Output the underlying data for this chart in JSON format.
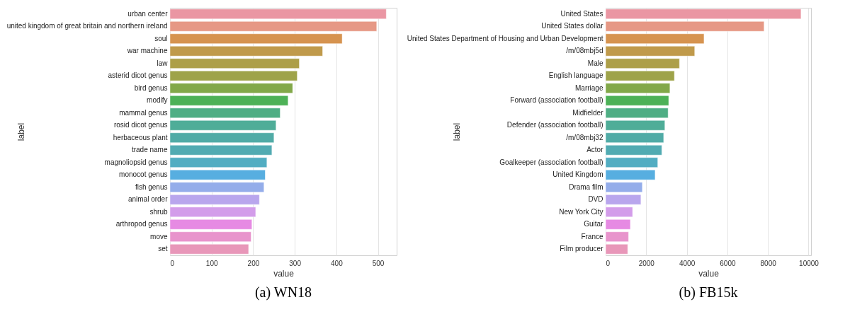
{
  "chart_data": [
    {
      "type": "bar",
      "orientation": "horizontal",
      "title": "(a) WN18",
      "xlabel": "value",
      "ylabel": "label",
      "grid": "x",
      "legend": false,
      "categories": [
        "urban center",
        "united kingdom of great britain and northern ireland",
        "soul",
        "war machine",
        "law",
        "asterid dicot genus",
        "bird genus",
        "modify",
        "mammal genus",
        "rosid dicot genus",
        "herbaceous plant",
        "trade name",
        "magnoliopsid genus",
        "monocot genus",
        "fish genus",
        "animal order",
        "shrub",
        "arthropod genus",
        "move",
        "set"
      ],
      "values": [
        520,
        497,
        414,
        367,
        311,
        306,
        295,
        284,
        265,
        255,
        250,
        245,
        233,
        229,
        226,
        215,
        206,
        197,
        195,
        189
      ],
      "colors": [
        "#ea96a3",
        "#e69885",
        "#d6934f",
        "#c09a4b",
        "#ad9f48",
        "#9ea349",
        "#82a849",
        "#4db157",
        "#4fae84",
        "#4fad98",
        "#50aba6",
        "#51abb2",
        "#52adc2",
        "#57aee0",
        "#94adea",
        "#b9a6ed",
        "#d39dea",
        "#e68ae3",
        "#e894cc",
        "#e897b9"
      ],
      "xlim": [
        0,
        545
      ],
      "xticks": [
        0,
        100,
        200,
        300,
        400,
        500
      ]
    },
    {
      "type": "bar",
      "orientation": "horizontal",
      "title": "(b) FB15k",
      "xlabel": "value",
      "ylabel": "label",
      "grid": "x",
      "legend": false,
      "categories": [
        "United States",
        "United States dollar",
        "United States Department of Housing and Urban Development",
        "/m/08mbj5d",
        "Male",
        "English language",
        "Marriage",
        "Forward (association football)",
        "Midfielder",
        "Defender (association football)",
        "/m/08mbj32",
        "Actor",
        "Goalkeeper (association football)",
        "United Kingdom",
        "Drama film",
        "DVD",
        "New York City",
        "Guitar",
        "France",
        "Film producer"
      ],
      "values": [
        9630,
        7810,
        4850,
        4390,
        3640,
        3390,
        3170,
        3110,
        3080,
        2920,
        2860,
        2770,
        2570,
        2440,
        1810,
        1740,
        1330,
        1220,
        1130,
        1090
      ],
      "colors": [
        "#ea96a3",
        "#e69885",
        "#d6934f",
        "#c09a4b",
        "#ad9f48",
        "#9ea349",
        "#82a849",
        "#4db157",
        "#4fae84",
        "#4fad98",
        "#50aba6",
        "#51abb2",
        "#52adc2",
        "#57aee0",
        "#94adea",
        "#b9a6ed",
        "#d39dea",
        "#e68ae3",
        "#e894cc",
        "#e897b9"
      ],
      "xlim": [
        0,
        10123
      ],
      "xticks": [
        0,
        2000,
        4000,
        6000,
        8000,
        10000
      ]
    }
  ]
}
